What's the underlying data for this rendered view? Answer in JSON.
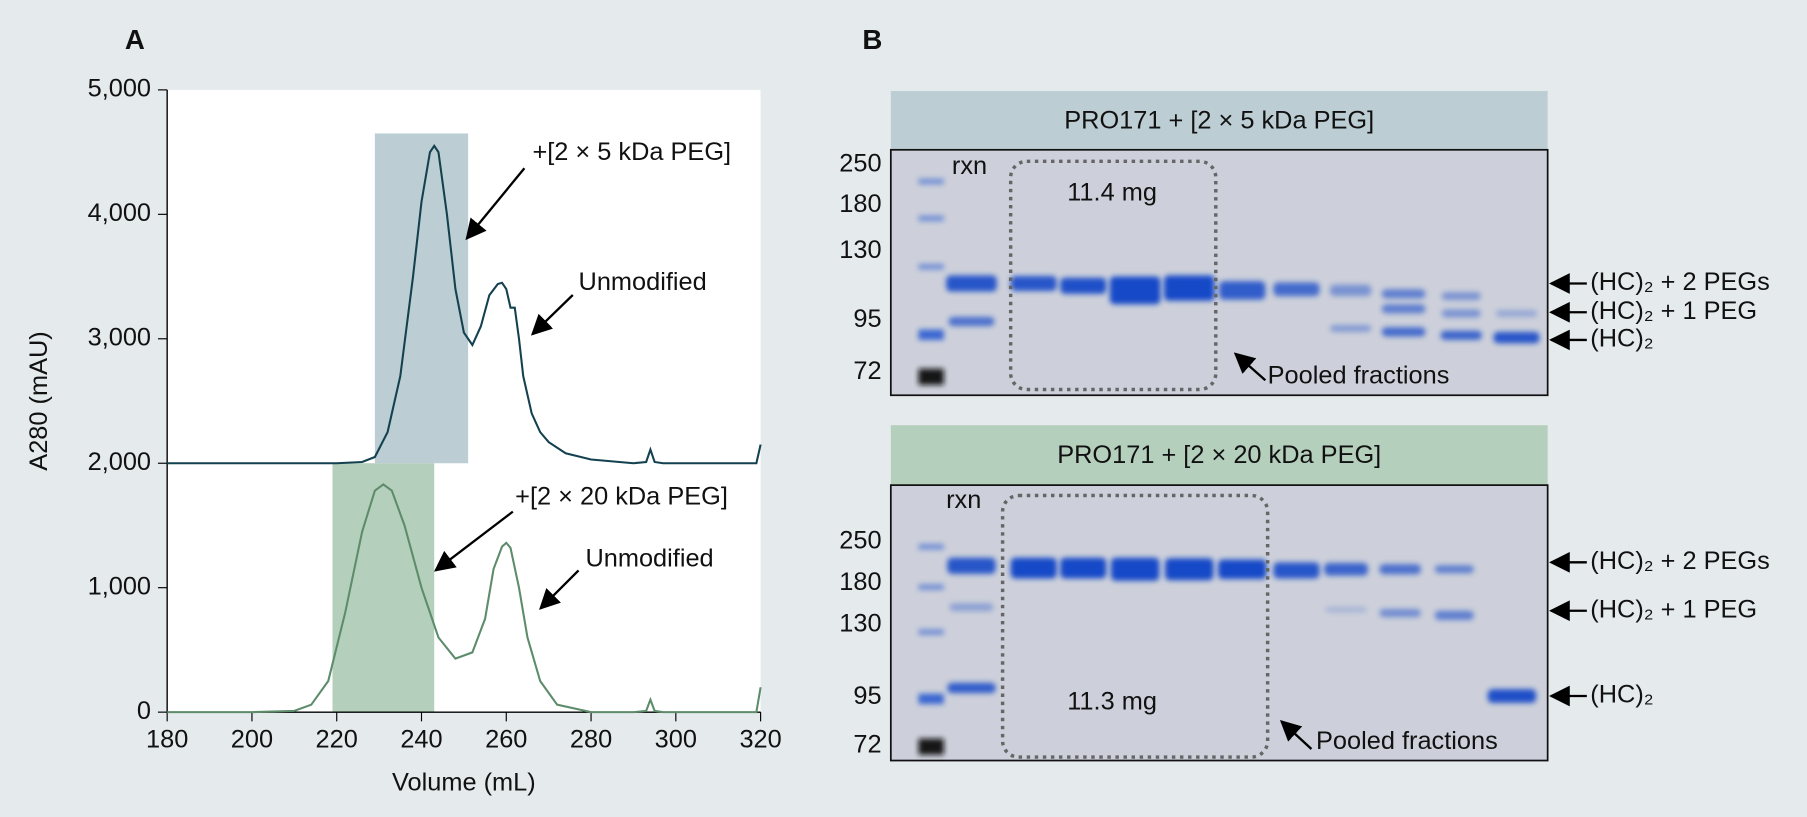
{
  "panel_labels": [
    "A",
    "B"
  ],
  "chart_data": {
    "type": "line",
    "x_label": "Volume (mL)",
    "y_label": "A280 (mAU)",
    "xlim": [
      180,
      320
    ],
    "xticks": [
      180,
      200,
      220,
      240,
      260,
      280,
      300,
      320
    ],
    "ylim": [
      0,
      5000
    ],
    "yticks": [
      0,
      {
        "value": 1000,
        "label": "1,000"
      },
      {
        "value": 2000,
        "label": "2,000"
      },
      {
        "value": 3000,
        "label": "3,000"
      },
      {
        "value": 4000,
        "label": "4,000"
      },
      {
        "value": 5000,
        "label": "5,000"
      }
    ],
    "series": [
      {
        "color": "#14414f",
        "x": [
          180,
          200,
          220,
          226,
          229,
          232,
          235,
          238,
          240,
          242,
          243,
          244,
          246,
          248,
          250,
          252,
          254,
          256,
          258,
          259,
          260,
          261,
          262,
          263,
          264,
          266,
          268,
          270,
          274,
          280,
          290,
          293,
          294,
          295,
          297,
          310,
          319,
          320
        ],
        "values": [
          2000,
          2000,
          2000,
          2010,
          2050,
          2250,
          2700,
          3500,
          4100,
          4500,
          4550,
          4500,
          4000,
          3400,
          3050,
          2950,
          3100,
          3350,
          3440,
          3450,
          3400,
          3250,
          3250,
          3000,
          2700,
          2400,
          2250,
          2170,
          2080,
          2030,
          2000,
          2010,
          2110,
          2010,
          2000,
          2000,
          2000,
          2150
        ]
      },
      {
        "color": "#5d8c6b",
        "x": [
          180,
          200,
          210,
          214,
          218,
          222,
          226,
          229,
          231,
          233,
          236,
          240,
          244,
          248,
          252,
          255,
          257,
          259,
          260,
          261,
          263,
          265,
          268,
          272,
          280,
          290,
          293,
          294,
          295,
          297,
          310,
          319,
          320
        ],
        "values": [
          0,
          0,
          10,
          60,
          250,
          800,
          1450,
          1780,
          1830,
          1780,
          1500,
          1000,
          600,
          430,
          480,
          750,
          1150,
          1330,
          1360,
          1320,
          1000,
          600,
          250,
          60,
          0,
          0,
          10,
          100,
          10,
          0,
          0,
          0,
          200
        ]
      }
    ],
    "highlights": [
      {
        "x": [
          229,
          251
        ],
        "y": [
          2000,
          4650
        ],
        "color": "#bccdd3"
      },
      {
        "x": [
          219,
          243
        ],
        "y": [
          0,
          2000
        ],
        "color": "#b5cfbd"
      }
    ],
    "annotations": [
      "+[2 × 5 kDa PEG]",
      "Unmodified",
      "+[2 × 20 kDa PEG]",
      "Unmodified"
    ]
  },
  "gels": [
    {
      "title": "PRO171 + [2 × 5 kDa PEG]",
      "markers": [
        "250",
        "180",
        "130",
        "95",
        "72"
      ],
      "lane_label": "rxn",
      "amount": "11.4 mg",
      "pool_label": "Pooled fractions",
      "band_labels": [
        "(HC)₂ + 2 PEGs",
        "(HC)₂ + 1 PEG",
        "(HC)₂"
      ]
    },
    {
      "title": "PRO171 + [2 × 20 kDa PEG]",
      "markers": [
        "250",
        "180",
        "130",
        "95",
        "72"
      ],
      "lane_label": "rxn",
      "amount": "11.3 mg",
      "pool_label": "Pooled fractions",
      "band_labels": [
        "(HC)₂ + 2 PEGs",
        "(HC)₂ + 1 PEG",
        "(HC)₂"
      ]
    }
  ]
}
